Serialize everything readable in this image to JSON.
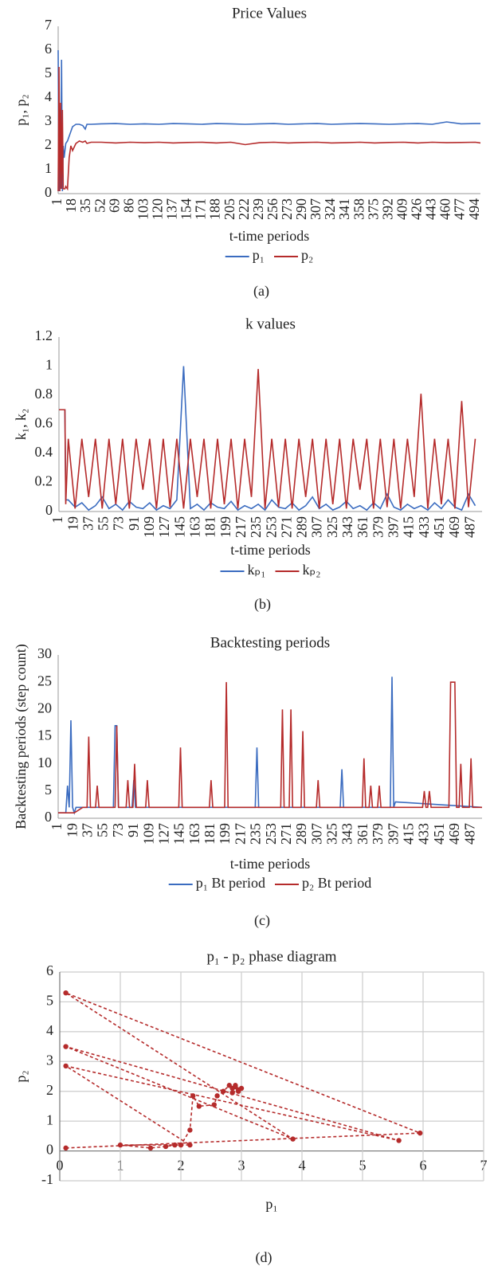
{
  "chart_data": [
    {
      "type": "line",
      "title": "Price Values",
      "y_label": "p₁, p₂",
      "x_label": "t-time periods",
      "caption": "(a)",
      "xlim": [
        1,
        500
      ],
      "ylim": [
        0,
        7
      ],
      "yticks": [
        0,
        1,
        2,
        3,
        4,
        5,
        6,
        7
      ],
      "xticks": [
        1,
        18,
        35,
        52,
        69,
        86,
        103,
        120,
        137,
        154,
        171,
        188,
        205,
        222,
        239,
        256,
        273,
        290,
        307,
        324,
        341,
        358,
        375,
        392,
        409,
        426,
        443,
        460,
        477,
        494
      ],
      "x": [
        1,
        2,
        3,
        4,
        5,
        6,
        7,
        8,
        9,
        10,
        12,
        14,
        16,
        18,
        22,
        26,
        30,
        33,
        35,
        40,
        52,
        69,
        86,
        103,
        120,
        137,
        154,
        171,
        188,
        205,
        222,
        239,
        256,
        273,
        290,
        307,
        324,
        341,
        358,
        375,
        392,
        409,
        426,
        443,
        460,
        477,
        494,
        500
      ],
      "series": [
        {
          "name": "p₁",
          "color": "#3b6cc0",
          "values": [
            6,
            0.1,
            3.5,
            0.2,
            5.6,
            0.1,
            2.0,
            1.5,
            1.8,
            2.1,
            2.2,
            2.4,
            2.6,
            2.8,
            2.9,
            2.9,
            2.85,
            2.7,
            2.9,
            2.9,
            2.92,
            2.93,
            2.9,
            2.92,
            2.9,
            2.93,
            2.92,
            2.9,
            2.93,
            2.92,
            2.9,
            2.92,
            2.93,
            2.9,
            2.92,
            2.93,
            2.9,
            2.92,
            2.93,
            2.92,
            2.9,
            2.92,
            2.93,
            2.9,
            3.0,
            2.92,
            2.93,
            2.93
          ]
        },
        {
          "name": "p₂",
          "color": "#b52b2b",
          "values": [
            0.1,
            5.3,
            0.1,
            3.8,
            0.2,
            3.5,
            0.2,
            0.2,
            0.2,
            0.3,
            0.2,
            1.5,
            2.0,
            1.8,
            2.1,
            2.2,
            2.15,
            2.2,
            2.1,
            2.15,
            2.15,
            2.12,
            2.15,
            2.13,
            2.15,
            2.12,
            2.14,
            2.15,
            2.12,
            2.15,
            2.05,
            2.13,
            2.15,
            2.12,
            2.14,
            2.15,
            2.12,
            2.13,
            2.15,
            2.12,
            2.14,
            2.15,
            2.12,
            2.15,
            2.13,
            2.14,
            2.15,
            2.12
          ]
        }
      ]
    },
    {
      "type": "line",
      "title": "k values",
      "y_label": "k₁, k₂",
      "x_label": "t-time periods",
      "caption": "(b)",
      "xlim": [
        1,
        500
      ],
      "ylim": [
        0,
        1.2
      ],
      "yticks": [
        0,
        0.2,
        0.4,
        0.6,
        0.8,
        1,
        1.2
      ],
      "xticks": [
        1,
        19,
        37,
        55,
        73,
        91,
        109,
        127,
        145,
        163,
        181,
        199,
        217,
        235,
        253,
        271,
        289,
        307,
        325,
        343,
        361,
        379,
        397,
        415,
        433,
        451,
        469,
        487
      ],
      "x": [
        1,
        8,
        9,
        12,
        20,
        28,
        36,
        44,
        52,
        60,
        68,
        76,
        84,
        92,
        100,
        108,
        116,
        124,
        132,
        140,
        148,
        156,
        164,
        172,
        180,
        188,
        196,
        204,
        212,
        220,
        228,
        236,
        244,
        252,
        260,
        268,
        276,
        284,
        292,
        300,
        308,
        316,
        324,
        332,
        340,
        348,
        356,
        364,
        372,
        380,
        388,
        396,
        404,
        412,
        420,
        428,
        436,
        444,
        452,
        460,
        468,
        476,
        484,
        492
      ],
      "series": [
        {
          "name": "kₚ₁",
          "color": "#3b6cc0",
          "values": [
            0.7,
            0.7,
            0.08,
            0.08,
            0.03,
            0.06,
            0.01,
            0.04,
            0.1,
            0.02,
            0.05,
            0.01,
            0.07,
            0.03,
            0.02,
            0.06,
            0.01,
            0.04,
            0.02,
            0.08,
            1.0,
            0.02,
            0.05,
            0.01,
            0.06,
            0.03,
            0.02,
            0.07,
            0.01,
            0.04,
            0.02,
            0.05,
            0.01,
            0.08,
            0.03,
            0.02,
            0.06,
            0.01,
            0.04,
            0.1,
            0.02,
            0.05,
            0.01,
            0.03,
            0.07,
            0.02,
            0.04,
            0.01,
            0.06,
            0.02,
            0.12,
            0.03,
            0.01,
            0.05,
            0.02,
            0.04,
            0.01,
            0.06,
            0.02,
            0.08,
            0.03,
            0.01,
            0.12,
            0.04
          ]
        },
        {
          "name": "kₚ₂",
          "color": "#b52b2b",
          "values": [
            0.7,
            0.7,
            0.05,
            0.5,
            0.02,
            0.5,
            0.1,
            0.5,
            0.02,
            0.5,
            0.05,
            0.5,
            0.02,
            0.5,
            0.15,
            0.5,
            0.02,
            0.5,
            0.03,
            0.5,
            0.02,
            0.5,
            0.1,
            0.5,
            0.02,
            0.5,
            0.05,
            0.5,
            0.02,
            0.5,
            0.1,
            0.98,
            0.02,
            0.5,
            0.03,
            0.5,
            0.02,
            0.5,
            0.1,
            0.5,
            0.02,
            0.5,
            0.05,
            0.5,
            0.02,
            0.5,
            0.15,
            0.5,
            0.02,
            0.5,
            0.03,
            0.5,
            0.02,
            0.5,
            0.1,
            0.81,
            0.02,
            0.5,
            0.05,
            0.5,
            0.02,
            0.76,
            0.03,
            0.5
          ]
        }
      ]
    },
    {
      "type": "line",
      "title": "Backtesting periods",
      "y_label": "Backtesting periods (step count)",
      "x_label": "t-time periods",
      "caption": "(c)",
      "xlim": [
        1,
        500
      ],
      "ylim": [
        0,
        30
      ],
      "yticks": [
        0,
        5,
        10,
        15,
        20,
        25,
        30
      ],
      "xticks": [
        1,
        19,
        37,
        55,
        73,
        91,
        109,
        127,
        145,
        163,
        181,
        199,
        217,
        235,
        253,
        271,
        289,
        307,
        325,
        343,
        361,
        379,
        397,
        415,
        433,
        451,
        469,
        487
      ],
      "series": [
        {
          "name": "p₁ Bt period",
          "color": "#3b6cc0",
          "x": [
            1,
            10,
            12,
            14,
            16,
            18,
            20,
            22,
            66,
            68,
            70,
            72,
            74,
            88,
            90,
            92,
            94,
            230,
            233,
            235,
            237,
            240,
            330,
            333,
            335,
            337,
            340,
            390,
            392,
            394,
            396,
            398,
            500
          ],
          "values": [
            1,
            1,
            6,
            2,
            18,
            2,
            1,
            2,
            2,
            17,
            17,
            2,
            2,
            2,
            7,
            2,
            2,
            2,
            2,
            13,
            2,
            2,
            2,
            2,
            9,
            2,
            2,
            2,
            2,
            26,
            2,
            3,
            2
          ]
        },
        {
          "name": "p₂ Bt period",
          "color": "#b52b2b",
          "x": [
            1,
            20,
            30,
            35,
            37,
            39,
            45,
            47,
            49,
            68,
            70,
            72,
            81,
            83,
            85,
            89,
            91,
            93,
            104,
            106,
            108,
            143,
            145,
            147,
            179,
            181,
            183,
            197,
            199,
            201,
            263,
            265,
            267,
            273,
            275,
            277,
            287,
            289,
            291,
            305,
            307,
            309,
            359,
            361,
            363,
            367,
            369,
            371,
            377,
            379,
            381,
            430,
            432,
            434,
            436,
            438,
            440,
            461,
            463,
            468,
            470,
            473,
            475,
            477,
            485,
            487,
            489,
            500
          ],
          "values": [
            1,
            1,
            2,
            2,
            15,
            2,
            2,
            6,
            2,
            2,
            17,
            2,
            2,
            7,
            2,
            2,
            10,
            2,
            2,
            7,
            2,
            2,
            13,
            2,
            2,
            7,
            2,
            2,
            25,
            2,
            2,
            20,
            2,
            2,
            20,
            2,
            2,
            16,
            2,
            2,
            7,
            2,
            2,
            11,
            2,
            2,
            6,
            2,
            2,
            6,
            2,
            2,
            5,
            2,
            2,
            5,
            2,
            2,
            25,
            25,
            2,
            2,
            10,
            2,
            2,
            11,
            2,
            2
          ]
        }
      ]
    },
    {
      "type": "scatter",
      "title": "p₁ - p₂ phase diagram",
      "y_label": "p₂",
      "x_label": "p₁",
      "caption": "(d)",
      "xlim": [
        0,
        7
      ],
      "ylim": [
        -1,
        6
      ],
      "xticks": [
        0,
        1,
        2,
        3,
        4,
        5,
        6,
        7
      ],
      "yticks": [
        -1,
        0,
        1,
        2,
        3,
        4,
        5,
        6
      ],
      "grid": true,
      "color": "#b52b2b",
      "line_style": "dashed",
      "x": [
        0.1,
        5.95,
        0.1,
        3.85,
        0.1,
        5.6,
        0.1,
        2.15,
        1.0,
        1.5,
        1.75,
        1.9,
        2.0,
        2.15,
        2.2,
        2.3,
        2.55,
        2.6,
        2.7,
        2.8,
        2.85,
        2.9,
        2.95,
        3.0,
        2.85,
        2.9,
        2.95
      ],
      "values": [
        0.1,
        0.6,
        5.3,
        0.4,
        3.5,
        0.35,
        2.85,
        0.2,
        0.2,
        0.1,
        0.15,
        0.2,
        0.2,
        0.7,
        1.85,
        1.5,
        1.55,
        1.85,
        2.0,
        2.2,
        2.1,
        2.15,
        2.05,
        2.1,
        1.95,
        2.2,
        2.0
      ]
    }
  ]
}
